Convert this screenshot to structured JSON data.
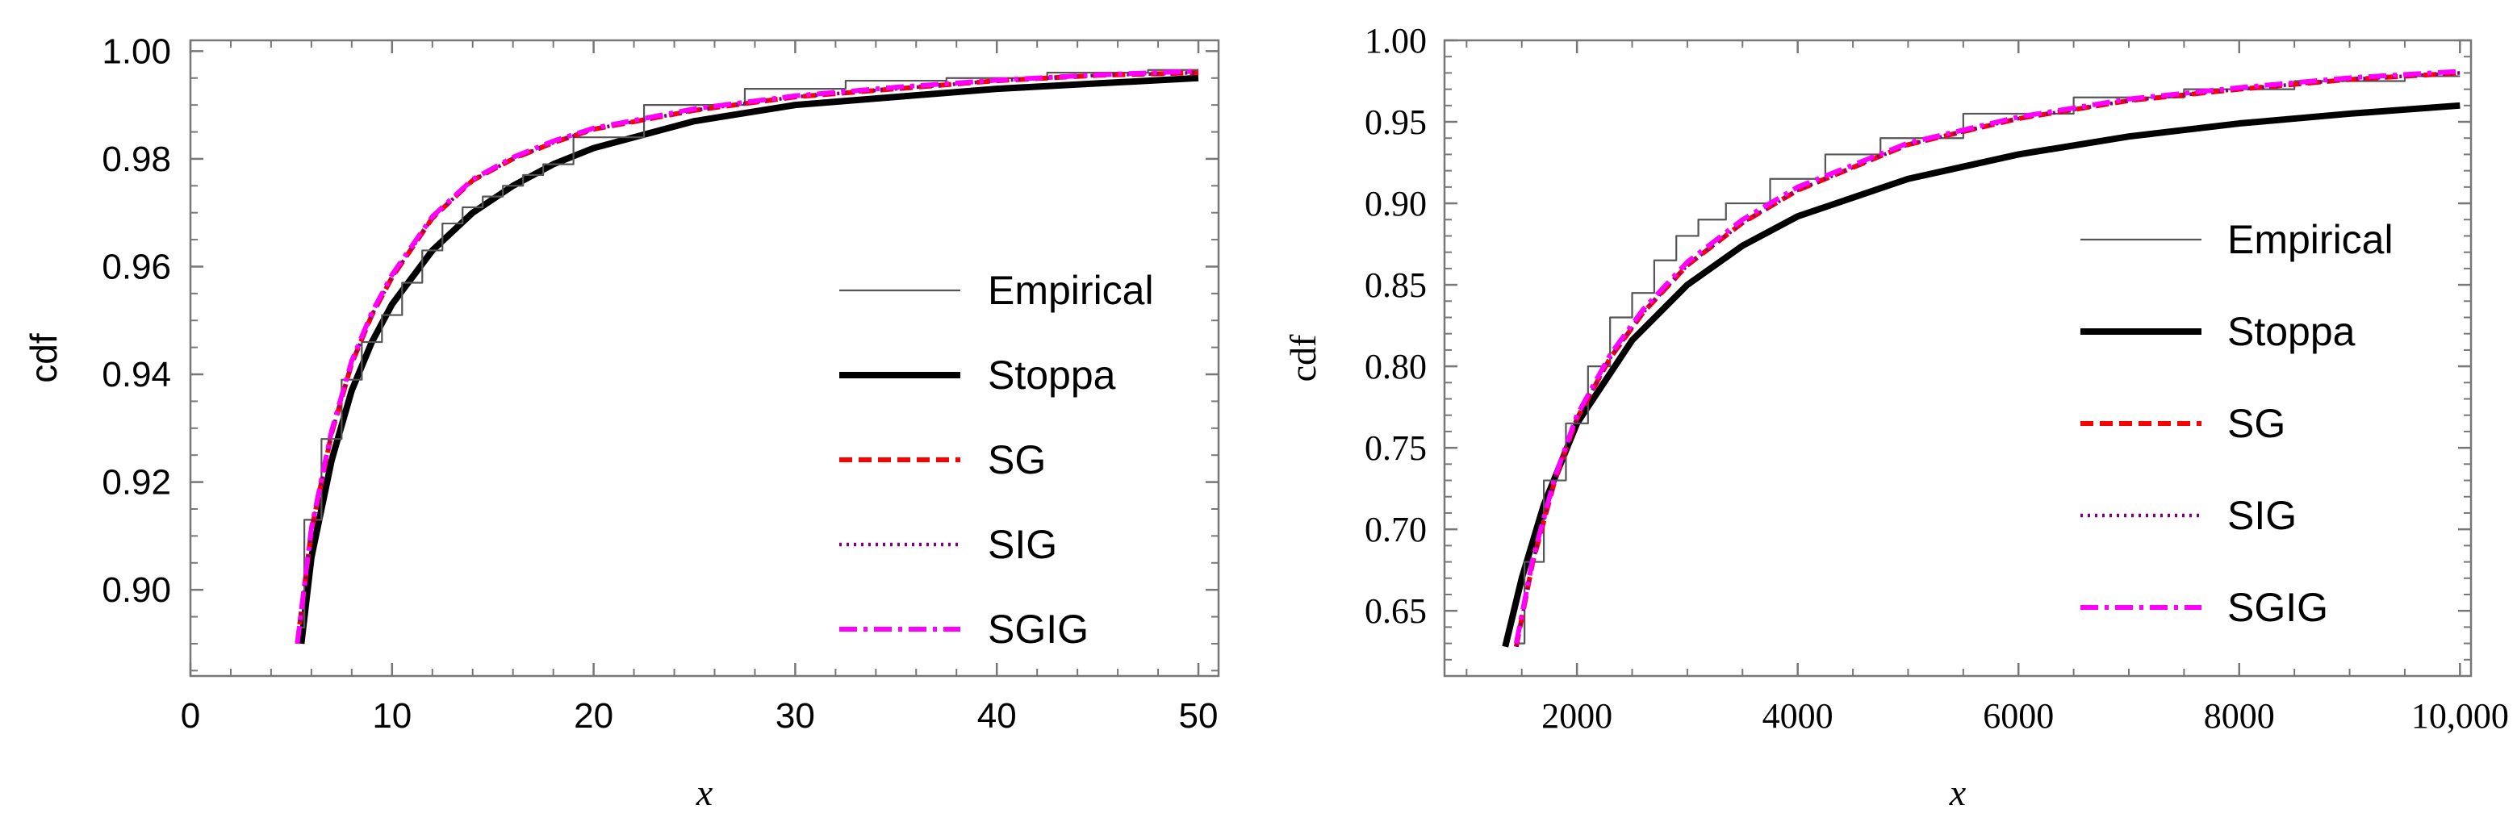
{
  "chart_data": [
    {
      "type": "line",
      "title": "",
      "xlabel": "x",
      "ylabel": "cdf",
      "xlim": [
        0,
        51
      ],
      "ylim": [
        0.884,
        1.002
      ],
      "xticks": [
        0,
        10,
        20,
        30,
        40,
        50
      ],
      "xtick_labels": [
        "0",
        "10",
        "20",
        "30",
        "40",
        "50"
      ],
      "yticks": [
        0.9,
        0.92,
        0.94,
        0.96,
        0.98,
        1.0
      ],
      "ytick_labels": [
        "0.90",
        "0.92",
        "0.94",
        "0.96",
        "0.98",
        "1.00"
      ],
      "legend_position": "center-right",
      "series": [
        {
          "name": "Empirical",
          "color": "#555555",
          "style": "thin",
          "x": [
            5.3,
            6,
            7,
            8,
            9,
            10,
            11,
            12,
            13,
            14,
            15,
            16,
            17,
            18,
            20,
            25,
            30,
            35,
            40,
            45,
            50
          ],
          "y": [
            0.893,
            0.913,
            0.928,
            0.939,
            0.946,
            0.951,
            0.957,
            0.963,
            0.968,
            0.971,
            0.973,
            0.975,
            0.977,
            0.979,
            0.984,
            0.99,
            0.993,
            0.9945,
            0.995,
            0.996,
            0.9965
          ]
        },
        {
          "name": "Stoppa",
          "color": "#000000",
          "style": "thick",
          "x": [
            5.5,
            6,
            7,
            8,
            9,
            10,
            12,
            14,
            16,
            18,
            20,
            25,
            30,
            35,
            40,
            45,
            50
          ],
          "y": [
            0.89,
            0.906,
            0.924,
            0.937,
            0.946,
            0.953,
            0.963,
            0.97,
            0.975,
            0.979,
            0.982,
            0.987,
            0.99,
            0.9915,
            0.993,
            0.994,
            0.995
          ]
        },
        {
          "name": "SG",
          "color": "#ff0000",
          "style": "dashed",
          "x": [
            5.3,
            6,
            7,
            8,
            9,
            10,
            12,
            14,
            16,
            18,
            20,
            25,
            30,
            35,
            40,
            45,
            50
          ],
          "y": [
            0.89,
            0.911,
            0.929,
            0.942,
            0.951,
            0.958,
            0.969,
            0.976,
            0.98,
            0.983,
            0.9855,
            0.989,
            0.9915,
            0.993,
            0.9945,
            0.9955,
            0.996
          ]
        },
        {
          "name": "SIG",
          "color": "#7f007f",
          "style": "dotted",
          "x": [
            5.3,
            6,
            7,
            8,
            9,
            10,
            12,
            14,
            16,
            18,
            20,
            25,
            30,
            35,
            40,
            45,
            50
          ],
          "y": [
            0.89,
            0.911,
            0.929,
            0.942,
            0.951,
            0.958,
            0.969,
            0.976,
            0.98,
            0.983,
            0.9855,
            0.989,
            0.9915,
            0.993,
            0.9945,
            0.9955,
            0.996
          ]
        },
        {
          "name": "SGIG",
          "color": "#ff00ff",
          "style": "dashdot",
          "x": [
            5.3,
            6,
            7,
            8,
            9,
            10,
            12,
            14,
            16,
            18,
            20,
            25,
            30,
            35,
            40,
            45,
            50
          ],
          "y": [
            0.89,
            0.9115,
            0.9295,
            0.9425,
            0.9515,
            0.9585,
            0.9693,
            0.9762,
            0.9803,
            0.9833,
            0.9857,
            0.9893,
            0.9917,
            0.9933,
            0.9946,
            0.9956,
            0.9963
          ]
        }
      ]
    },
    {
      "type": "line",
      "title": "",
      "xlabel": "x",
      "ylabel": "cdf",
      "xlim": [
        800,
        10100
      ],
      "ylim": [
        0.61,
        1.0
      ],
      "xticks": [
        2000,
        4000,
        6000,
        8000,
        10000
      ],
      "xtick_labels": [
        "2000",
        "4000",
        "6000",
        "8000",
        "10,000"
      ],
      "yticks": [
        0.65,
        0.7,
        0.75,
        0.8,
        0.85,
        0.9,
        0.95,
        1.0
      ],
      "ytick_labels": [
        "0.65",
        "0.70",
        "0.75",
        "0.80",
        "0.85",
        "0.90",
        "0.95",
        "1.00"
      ],
      "legend_position": "center-right",
      "series": [
        {
          "name": "Empirical",
          "color": "#555555",
          "style": "thin",
          "x": [
            1450,
            1600,
            1800,
            2000,
            2200,
            2400,
            2600,
            2800,
            3000,
            3200,
            3500,
            4000,
            4500,
            5000,
            6000,
            7000,
            8000,
            9000,
            10000
          ],
          "y": [
            0.63,
            0.68,
            0.73,
            0.765,
            0.8,
            0.83,
            0.845,
            0.865,
            0.88,
            0.89,
            0.9,
            0.915,
            0.93,
            0.94,
            0.955,
            0.965,
            0.97,
            0.975,
            0.978
          ]
        },
        {
          "name": "Stoppa",
          "color": "#000000",
          "style": "thick",
          "x": [
            1350,
            1500,
            1700,
            2000,
            2500,
            3000,
            3500,
            4000,
            5000,
            6000,
            7000,
            8000,
            9000,
            10000
          ],
          "y": [
            0.628,
            0.67,
            0.715,
            0.765,
            0.816,
            0.85,
            0.874,
            0.892,
            0.915,
            0.93,
            0.941,
            0.949,
            0.955,
            0.96
          ]
        },
        {
          "name": "SG",
          "color": "#ff0000",
          "style": "dashed",
          "x": [
            1450,
            1600,
            1800,
            2000,
            2300,
            2600,
            3000,
            3500,
            4000,
            5000,
            6000,
            7000,
            8000,
            9000,
            10000
          ],
          "y": [
            0.628,
            0.68,
            0.73,
            0.768,
            0.805,
            0.833,
            0.862,
            0.888,
            0.908,
            0.936,
            0.952,
            0.963,
            0.97,
            0.976,
            0.98
          ]
        },
        {
          "name": "SIG",
          "color": "#7f007f",
          "style": "dotted",
          "x": [
            1450,
            1600,
            1800,
            2000,
            2300,
            2600,
            3000,
            3500,
            4000,
            5000,
            6000,
            7000,
            8000,
            9000,
            10000
          ],
          "y": [
            0.628,
            0.68,
            0.73,
            0.768,
            0.805,
            0.833,
            0.862,
            0.888,
            0.908,
            0.936,
            0.952,
            0.963,
            0.97,
            0.976,
            0.98
          ]
        },
        {
          "name": "SGIG",
          "color": "#ff00ff",
          "style": "dashdot",
          "x": [
            1450,
            1600,
            1800,
            2000,
            2300,
            2600,
            3000,
            3500,
            4000,
            5000,
            6000,
            7000,
            8000,
            9000,
            10000
          ],
          "y": [
            0.63,
            0.682,
            0.732,
            0.77,
            0.807,
            0.835,
            0.864,
            0.89,
            0.91,
            0.937,
            0.953,
            0.964,
            0.971,
            0.977,
            0.981
          ]
        }
      ]
    }
  ]
}
